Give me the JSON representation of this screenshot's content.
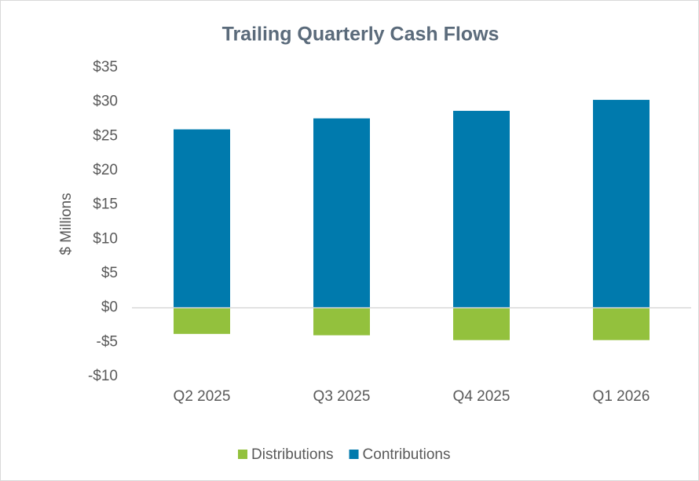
{
  "chart_data": {
    "type": "bar",
    "title": "Trailing Quarterly Cash Flows",
    "y_label": "$ Millions",
    "categories": [
      "Q2 2025",
      "Q3 2025",
      "Q4 2025",
      "Q1 2026"
    ],
    "series": [
      {
        "name": "Distributions",
        "color": "#93c13d",
        "values": [
          -3.8,
          -4.0,
          -4.7,
          -4.7
        ]
      },
      {
        "name": "Contributions",
        "color": "#007aad",
        "values": [
          26.0,
          27.6,
          28.7,
          30.3
        ]
      }
    ],
    "stacked": true,
    "ylim": [
      -10,
      35
    ],
    "yticks": [
      {
        "value": -10,
        "label": "-$10"
      },
      {
        "value": -5,
        "label": "-$5"
      },
      {
        "value": 0,
        "label": "$0"
      },
      {
        "value": 5,
        "label": "$5"
      },
      {
        "value": 10,
        "label": "$10"
      },
      {
        "value": 15,
        "label": "$15"
      },
      {
        "value": 20,
        "label": "$20"
      },
      {
        "value": 25,
        "label": "$25"
      },
      {
        "value": 30,
        "label": "$30"
      },
      {
        "value": 35,
        "label": "$35"
      }
    ],
    "grid": false,
    "legend": "bottom"
  }
}
